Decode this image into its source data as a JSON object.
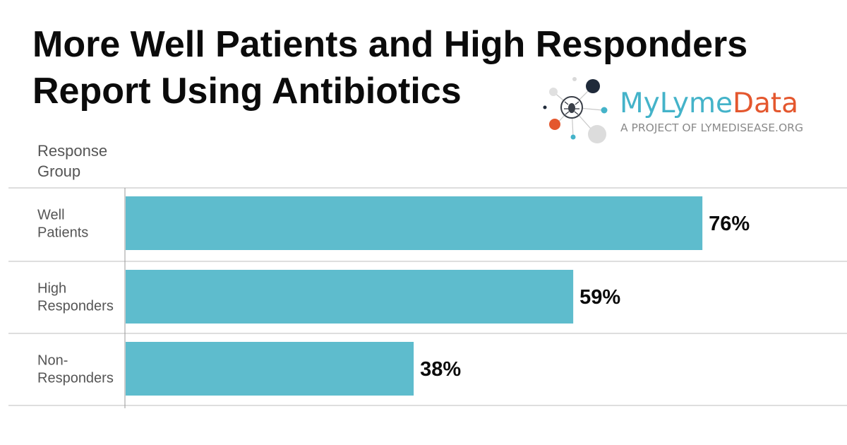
{
  "title_lines": [
    "More Well Patients and High Responders",
    "Report Using Antibiotics"
  ],
  "logo": {
    "brand_part1": "MyLyme",
    "brand_part2": "Data",
    "tagline": "A PROJECT OF LYMEDISEASE.ORG",
    "colors": {
      "teal": "#44b3c9",
      "orange": "#e4572e",
      "navy": "#1f2a3a",
      "gray": "#d9d9d9"
    },
    "icon": "tick-network-icon"
  },
  "chart_data": {
    "type": "bar",
    "orientation": "horizontal",
    "category_header": "Response\nGroup",
    "categories": [
      [
        "Well",
        "Patients"
      ],
      [
        "High",
        "Responders"
      ],
      [
        "Non-",
        "Responders"
      ]
    ],
    "values": [
      76,
      59,
      38
    ],
    "value_labels": [
      "76%",
      "59%",
      "38%"
    ],
    "xlim": [
      0,
      100
    ],
    "bar_color": "#5ebccd",
    "grid": false
  }
}
